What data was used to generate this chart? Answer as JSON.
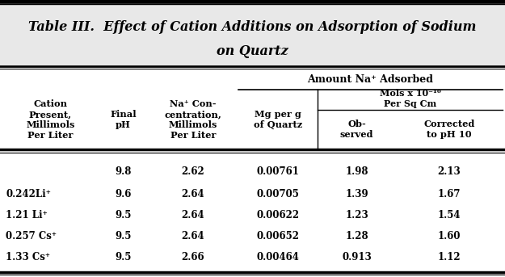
{
  "title_line1": "Table III.  Effect of Cation Additions on Adsorption of Sodium",
  "title_line2": "on Quartz",
  "amount_header": "Amount Na⁺ Adsorbed",
  "mols_header": "Mols x 10⁻¹⁰\nPer Sq Cm",
  "col_headers": [
    "Cation\nPresent,\nMillimols\nPer Liter",
    "Final\npH",
    "Na⁺ Con-\ncentration,\nMillimols\nPer Liter",
    "Mg per g\nof Quartz",
    "Ob-\nserved",
    "Corrected\nto pH 10"
  ],
  "rows": [
    [
      "",
      "9.8",
      "2.62",
      "0.00761",
      "1.98",
      "2.13"
    ],
    [
      "0.242Li⁺",
      "9.6",
      "2.64",
      "0.00705",
      "1.39",
      "1.67"
    ],
    [
      "1.21 Li⁺",
      "9.5",
      "2.64",
      "0.00622",
      "1.23",
      "1.54"
    ],
    [
      "0.257 Cs⁺",
      "9.5",
      "2.64",
      "0.00652",
      "1.28",
      "1.60"
    ],
    [
      "1.33 Cs⁺",
      "9.5",
      "2.66",
      "0.00464",
      "0.913",
      "1.12"
    ]
  ],
  "bg_color": "#e8e8e8",
  "title_bg": "#e8e8e8",
  "table_bg": "#ffffff",
  "text_color": "#000000",
  "line_color": "#000000",
  "title_fontsize": 11.5,
  "header_fontsize": 8.2,
  "data_fontsize": 8.5
}
